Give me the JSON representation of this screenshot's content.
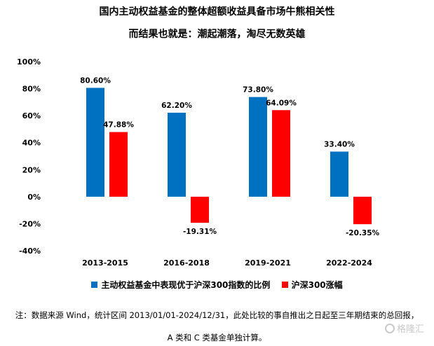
{
  "title": "国内主动权益基金的整体超额收益具备市场牛熊相关性",
  "subtitle": "而结果也就是：潮起潮落，淘尽无数英雄",
  "chart_data": {
    "type": "bar",
    "categories": [
      "2013-2015",
      "2016-2018",
      "2019-2021",
      "2022-2024"
    ],
    "series": [
      {
        "name": "主动权益基金中表现优于沪深300指数的比例",
        "values": [
          80.6,
          62.2,
          73.8,
          33.4
        ],
        "labels": [
          "80.60%",
          "62.20%",
          "73.80%",
          "33.40%"
        ],
        "color": "#0070C0"
      },
      {
        "name": "沪深300涨幅",
        "values": [
          47.88,
          -19.31,
          64.09,
          -20.35
        ],
        "labels": [
          "47.88%",
          "-19.31%",
          "64.09%",
          "-20.35%"
        ],
        "color": "#FF0000"
      }
    ],
    "ylim": [
      -40,
      100
    ],
    "yticks": [
      -40,
      -20,
      0,
      20,
      40,
      60,
      80,
      100
    ],
    "ytick_labels": [
      "-40%",
      "-20%",
      "0%",
      "20%",
      "40%",
      "60%",
      "80%",
      "100%"
    ],
    "grid": false,
    "legend_position": "bottom"
  },
  "note_line1": "注：数据来源 Wind，统计区间 2013/01/01-2024/12/31，此处比较的事自推出之日起至三年期结束的总回报，",
  "note_line2": "A 类和 C 类基金单独计算。",
  "watermark": "格隆汇"
}
